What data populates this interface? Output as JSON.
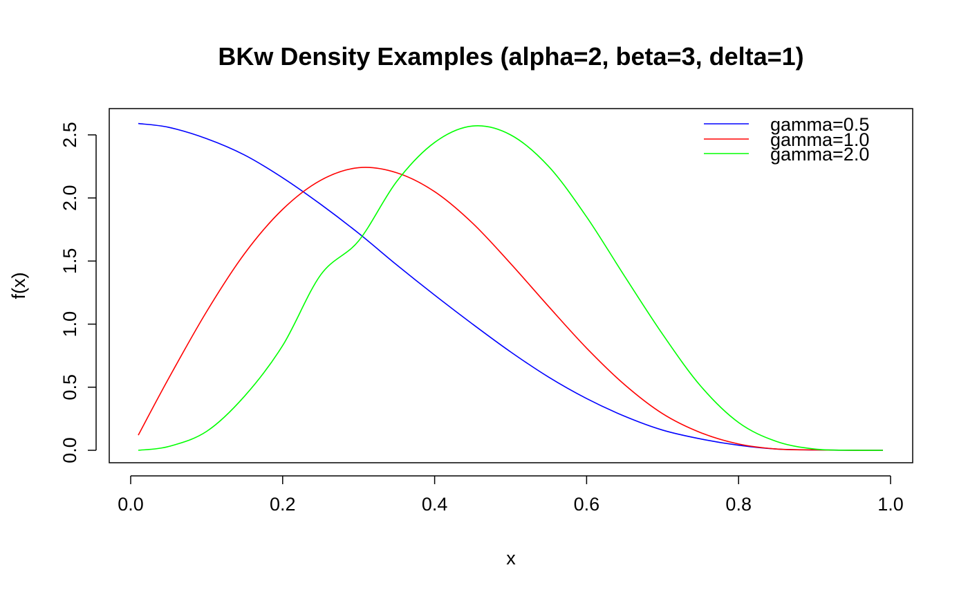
{
  "chart_data": {
    "type": "line",
    "title": "BKw Density Examples (alpha=2, beta=3, delta=1)",
    "xlabel": "x",
    "ylabel": "f(x)",
    "xlim": [
      0.0,
      1.0
    ],
    "ylim": [
      0.0,
      2.5
    ],
    "xticks": [
      "0.0",
      "0.2",
      "0.4",
      "0.6",
      "0.8",
      "1.0"
    ],
    "yticks": [
      "0.0",
      "0.5",
      "1.0",
      "1.5",
      "2.0",
      "2.5"
    ],
    "grid": false,
    "legend": "top-right",
    "x": [
      0.01,
      0.05,
      0.1,
      0.15,
      0.2,
      0.25,
      0.3,
      0.35,
      0.4,
      0.45,
      0.5,
      0.55,
      0.6,
      0.65,
      0.7,
      0.75,
      0.8,
      0.85,
      0.9,
      0.95,
      0.99
    ],
    "series": [
      {
        "name": "gamma=0.5",
        "color": "#0000ff",
        "values": [
          2.59,
          2.56,
          2.47,
          2.34,
          2.16,
          1.95,
          1.72,
          1.47,
          1.23,
          1.0,
          0.78,
          0.58,
          0.41,
          0.27,
          0.16,
          0.09,
          0.04,
          0.01,
          0.003,
          0.0003,
          0.0
        ]
      },
      {
        "name": "gamma=1.0",
        "color": "#ff0000",
        "values": [
          0.12,
          0.57,
          1.1,
          1.56,
          1.91,
          2.14,
          2.24,
          2.2,
          2.05,
          1.8,
          1.48,
          1.14,
          0.81,
          0.52,
          0.29,
          0.14,
          0.05,
          0.01,
          0.003,
          0.0001,
          0.0
        ]
      },
      {
        "name": "gamma=2.0",
        "color": "#00ff00",
        "values": [
          0.0,
          0.03,
          0.15,
          0.43,
          0.83,
          1.39,
          1.66,
          2.13,
          2.44,
          2.57,
          2.5,
          2.25,
          1.85,
          1.38,
          0.92,
          0.51,
          0.22,
          0.07,
          0.01,
          0.0003,
          0.0
        ]
      }
    ]
  }
}
